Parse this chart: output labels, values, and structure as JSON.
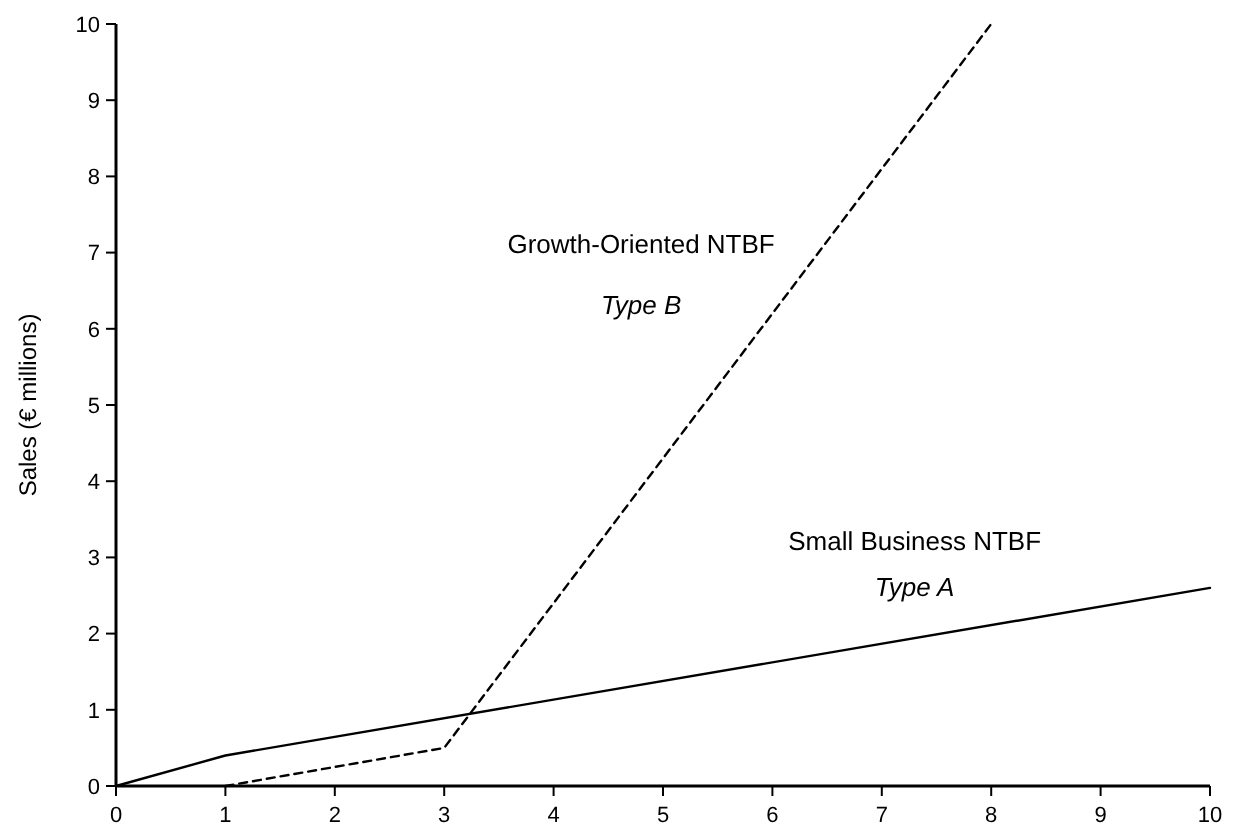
{
  "chart_data": {
    "type": "line",
    "ylabel": "Sales (€ millions)",
    "xlim": [
      0,
      10
    ],
    "ylim": [
      0,
      10
    ],
    "xticks": [
      0,
      1,
      2,
      3,
      4,
      5,
      6,
      7,
      8,
      9,
      10
    ],
    "yticks": [
      0,
      1,
      2,
      3,
      4,
      5,
      6,
      7,
      8,
      9,
      10
    ],
    "grid": false,
    "marker": "none",
    "series": [
      {
        "color": "#000000",
        "line_style": "solid",
        "x": [
          0,
          1,
          10
        ],
        "values": [
          0,
          0.4,
          2.6
        ]
      },
      {
        "color": "#000000",
        "line_style": "dashed",
        "x": [
          1,
          3,
          8
        ],
        "values": [
          0,
          0.5,
          10
        ]
      }
    ],
    "annotations": [
      "Growth-Oriented NTBF",
      "Type B",
      "Small Business NTBF",
      "Type A"
    ]
  }
}
